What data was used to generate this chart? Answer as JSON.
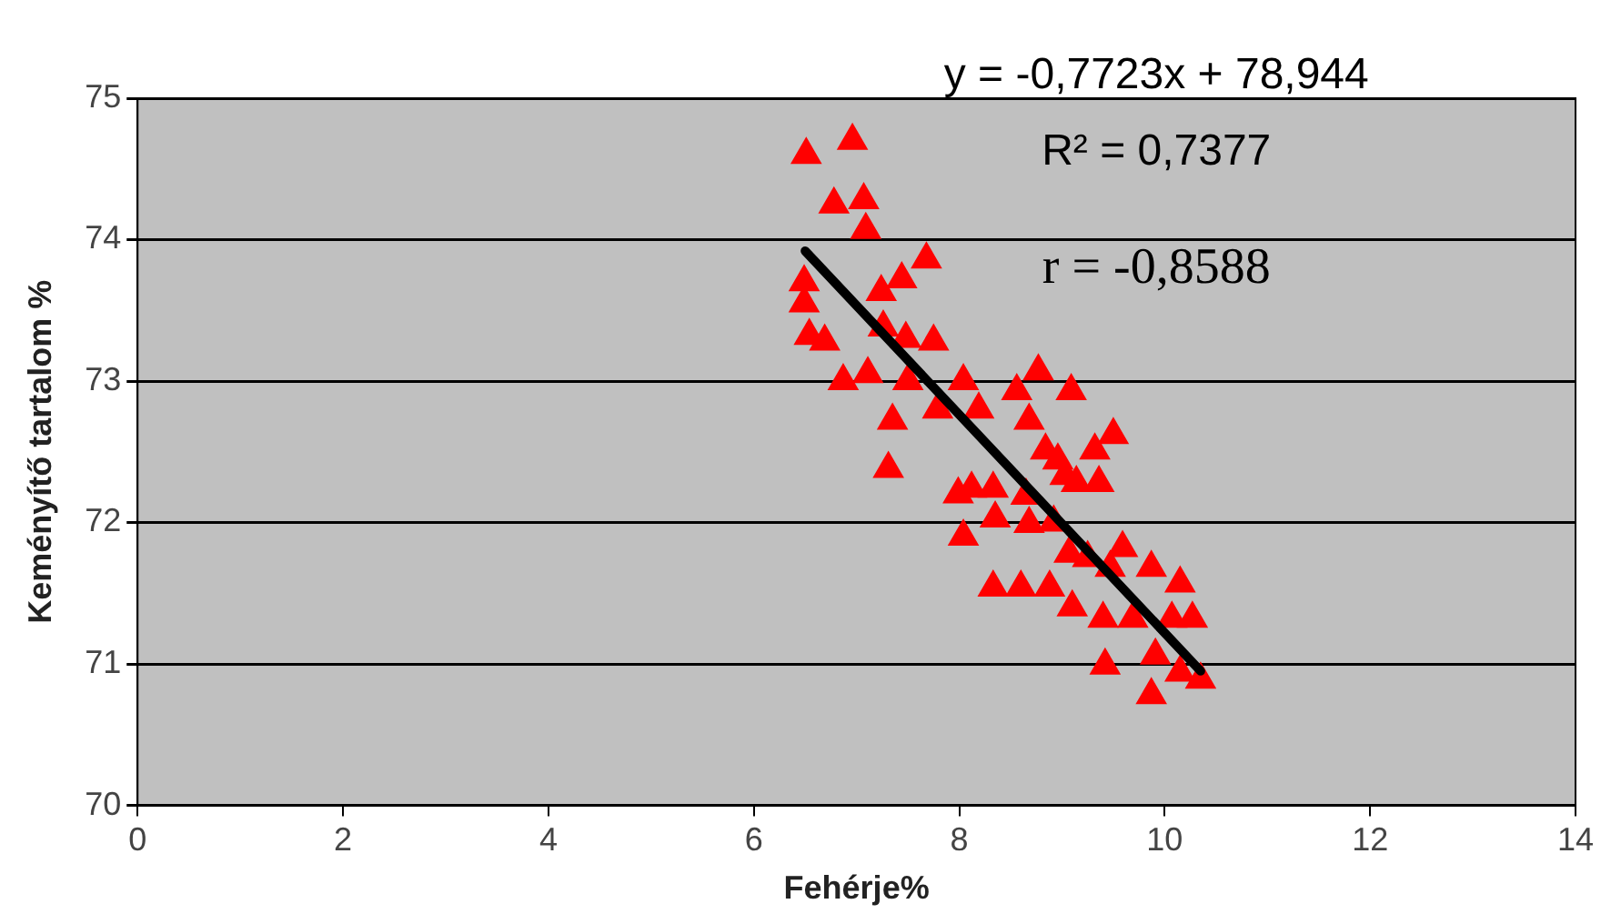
{
  "chart_data": {
    "type": "scatter",
    "xlabel": "Fehérje%",
    "ylabel": "Keményítő tartalom %",
    "xlim": [
      0,
      14
    ],
    "xticks": [
      0,
      2,
      4,
      6,
      8,
      10,
      12,
      14
    ],
    "ylim": [
      70,
      75
    ],
    "yticks": [
      70,
      71,
      72,
      73,
      74,
      75
    ],
    "grid": "y",
    "legend": false,
    "annotations": [
      "y = -0,7723x + 78,944",
      "R² = 0,7377",
      "r = -0,8588"
    ],
    "series": [
      {
        "marker": "triangle",
        "color": "#ff0000",
        "x": [
          6.51,
          6.96,
          6.78,
          7.07,
          7.09,
          6.49,
          6.49,
          6.54,
          6.69,
          6.87,
          7.11,
          7.24,
          7.44,
          7.68,
          7.26,
          7.48,
          7.75,
          7.35,
          7.31,
          7.5,
          7.79,
          8.19,
          8.04,
          7.99,
          8.04,
          8.12,
          8.33,
          8.35,
          8.33,
          8.6,
          8.77,
          8.56,
          8.68,
          9.09,
          8.84,
          8.96,
          9.03,
          8.65,
          8.68,
          8.92,
          9.14,
          9.32,
          9.5,
          9.36,
          9.07,
          9.25,
          8.88,
          9.1,
          9.47,
          9.59,
          9.4,
          9.69,
          9.87,
          10.07,
          10.27,
          10.15,
          9.42,
          9.91,
          9.87,
          10.15,
          10.35
        ],
        "values": [
          74.6,
          74.7,
          74.25,
          74.28,
          74.07,
          73.7,
          73.55,
          73.32,
          73.28,
          73.0,
          73.05,
          73.63,
          73.72,
          73.86,
          73.38,
          73.3,
          73.28,
          72.72,
          72.38,
          73.0,
          72.8,
          72.8,
          73.0,
          72.2,
          71.9,
          72.24,
          72.24,
          72.03,
          71.54,
          71.54,
          73.07,
          72.93,
          72.72,
          72.93,
          72.51,
          72.44,
          72.33,
          72.19,
          71.99,
          72.0,
          72.28,
          72.51,
          72.62,
          72.28,
          71.78,
          71.75,
          71.54,
          71.4,
          71.68,
          71.82,
          71.32,
          71.32,
          71.68,
          71.32,
          71.32,
          71.57,
          70.99,
          71.06,
          70.78,
          70.94,
          70.89
        ]
      },
      {
        "type": "line",
        "marker": "none",
        "color": "#000000",
        "x": [
          6.5,
          10.35
        ],
        "values": [
          73.92,
          70.95
        ]
      }
    ]
  }
}
